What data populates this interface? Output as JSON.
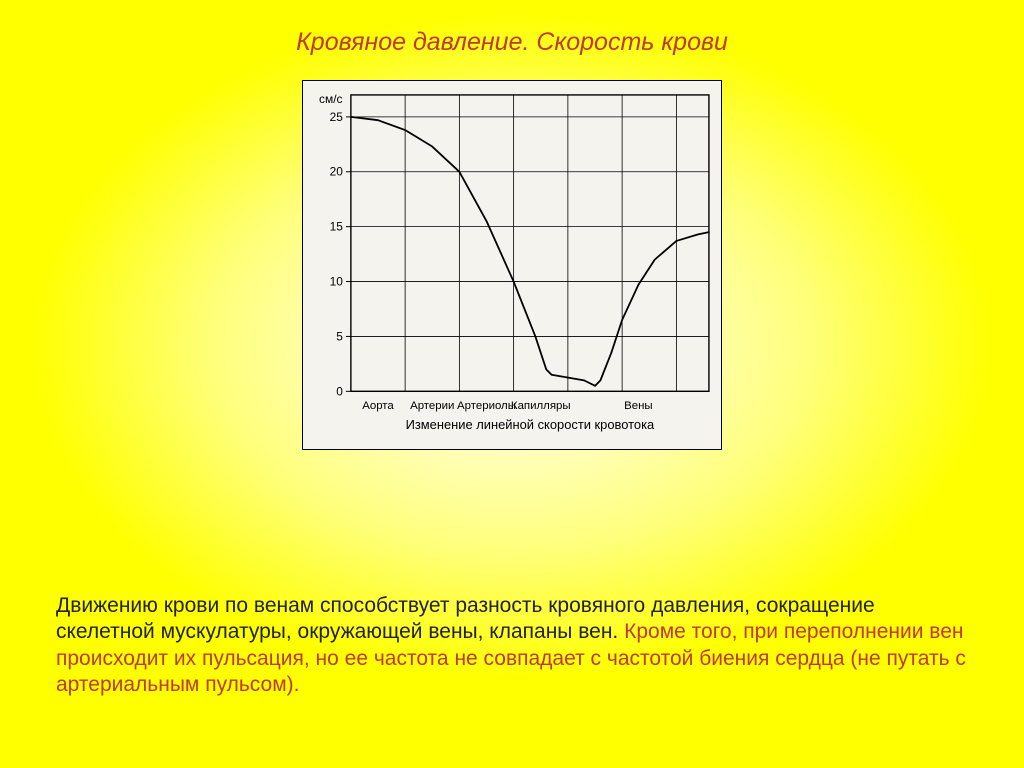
{
  "title": "Кровяное давление. Скорость крови",
  "chart": {
    "type": "line",
    "y_axis_label": "см/с",
    "y_ticks": [
      0,
      5,
      10,
      15,
      20,
      25
    ],
    "x_categories": [
      "Аорта",
      "Артерии",
      "Артериолы",
      "Капилляры",
      "Вены"
    ],
    "caption": "Изменение линейной скорости кровотока",
    "series": [
      {
        "x": 0.0,
        "y": 25.0
      },
      {
        "x": 0.5,
        "y": 24.7
      },
      {
        "x": 1.0,
        "y": 23.8
      },
      {
        "x": 1.5,
        "y": 22.3
      },
      {
        "x": 2.0,
        "y": 20.0
      },
      {
        "x": 2.5,
        "y": 15.5
      },
      {
        "x": 3.0,
        "y": 10.0
      },
      {
        "x": 3.4,
        "y": 5.0
      },
      {
        "x": 3.6,
        "y": 2.0
      },
      {
        "x": 3.7,
        "y": 1.5
      },
      {
        "x": 4.3,
        "y": 1.0
      },
      {
        "x": 4.5,
        "y": 0.5
      },
      {
        "x": 4.6,
        "y": 1.0
      },
      {
        "x": 4.8,
        "y": 3.5
      },
      {
        "x": 5.0,
        "y": 6.5
      },
      {
        "x": 5.3,
        "y": 9.7
      },
      {
        "x": 5.6,
        "y": 12.0
      },
      {
        "x": 6.0,
        "y": 13.7
      },
      {
        "x": 6.4,
        "y": 14.3
      },
      {
        "x": 6.6,
        "y": 14.5
      }
    ],
    "xlim": [
      0,
      6.6
    ],
    "ylim": [
      0,
      27
    ],
    "grid_xlines": [
      0,
      1,
      2,
      3,
      4,
      5,
      6,
      6.6
    ],
    "background_color": "#f5f3ee",
    "grid_color": "#000000",
    "line_color": "#000000",
    "line_width": 1.8,
    "font_size_ticks": 12,
    "font_size_caption": 13
  },
  "paragraph": {
    "part1": "Движению крови по венам способствует разность кровяного давления, сокращение скелетной мускулатуры, окружающей вены, клапаны вен. ",
    "part2": "Кроме того, при переполнении вен происходит их пульсация, но ее частота не совпадает с частотой биения сердца (не путать с артериальным пульсом)."
  },
  "colors": {
    "title_color": "#c0392b",
    "highlight_color": "#c0392b",
    "body_color": "#222222",
    "page_gradient_inner": "#ffffff",
    "page_gradient_outer": "#ffff00"
  }
}
